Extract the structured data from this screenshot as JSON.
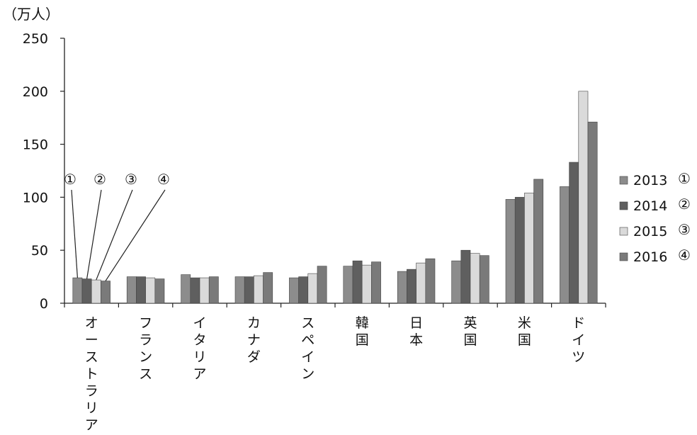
{
  "chart_data": {
    "type": "bar",
    "unit_label": "（万人）",
    "ylim": [
      0,
      250
    ],
    "yticks": [
      0,
      50,
      100,
      150,
      200,
      250
    ],
    "grid": false,
    "legend_position": "right",
    "categories": [
      "オーストラリア",
      "フランス",
      "イタリア",
      "カナダ",
      "スペイン",
      "韓国",
      "日本",
      "英国",
      "米国",
      "ドイツ"
    ],
    "series": [
      {
        "name": "2013",
        "marker": "①",
        "color": "#8c8c8c",
        "values": [
          24,
          25,
          27,
          25,
          24,
          35,
          30,
          40,
          98,
          110
        ]
      },
      {
        "name": "2014",
        "marker": "②",
        "color": "#5f5f5f",
        "values": [
          23,
          25,
          24,
          25,
          25,
          40,
          32,
          50,
          100,
          133
        ]
      },
      {
        "name": "2015",
        "marker": "③",
        "color": "#dadada",
        "values": [
          22,
          24,
          24,
          26,
          28,
          36,
          38,
          47,
          104,
          200
        ]
      },
      {
        "name": "2016",
        "marker": "④",
        "color": "#7a7a7a",
        "values": [
          21,
          23,
          25,
          29,
          35,
          39,
          42,
          45,
          117,
          171
        ]
      }
    ]
  }
}
